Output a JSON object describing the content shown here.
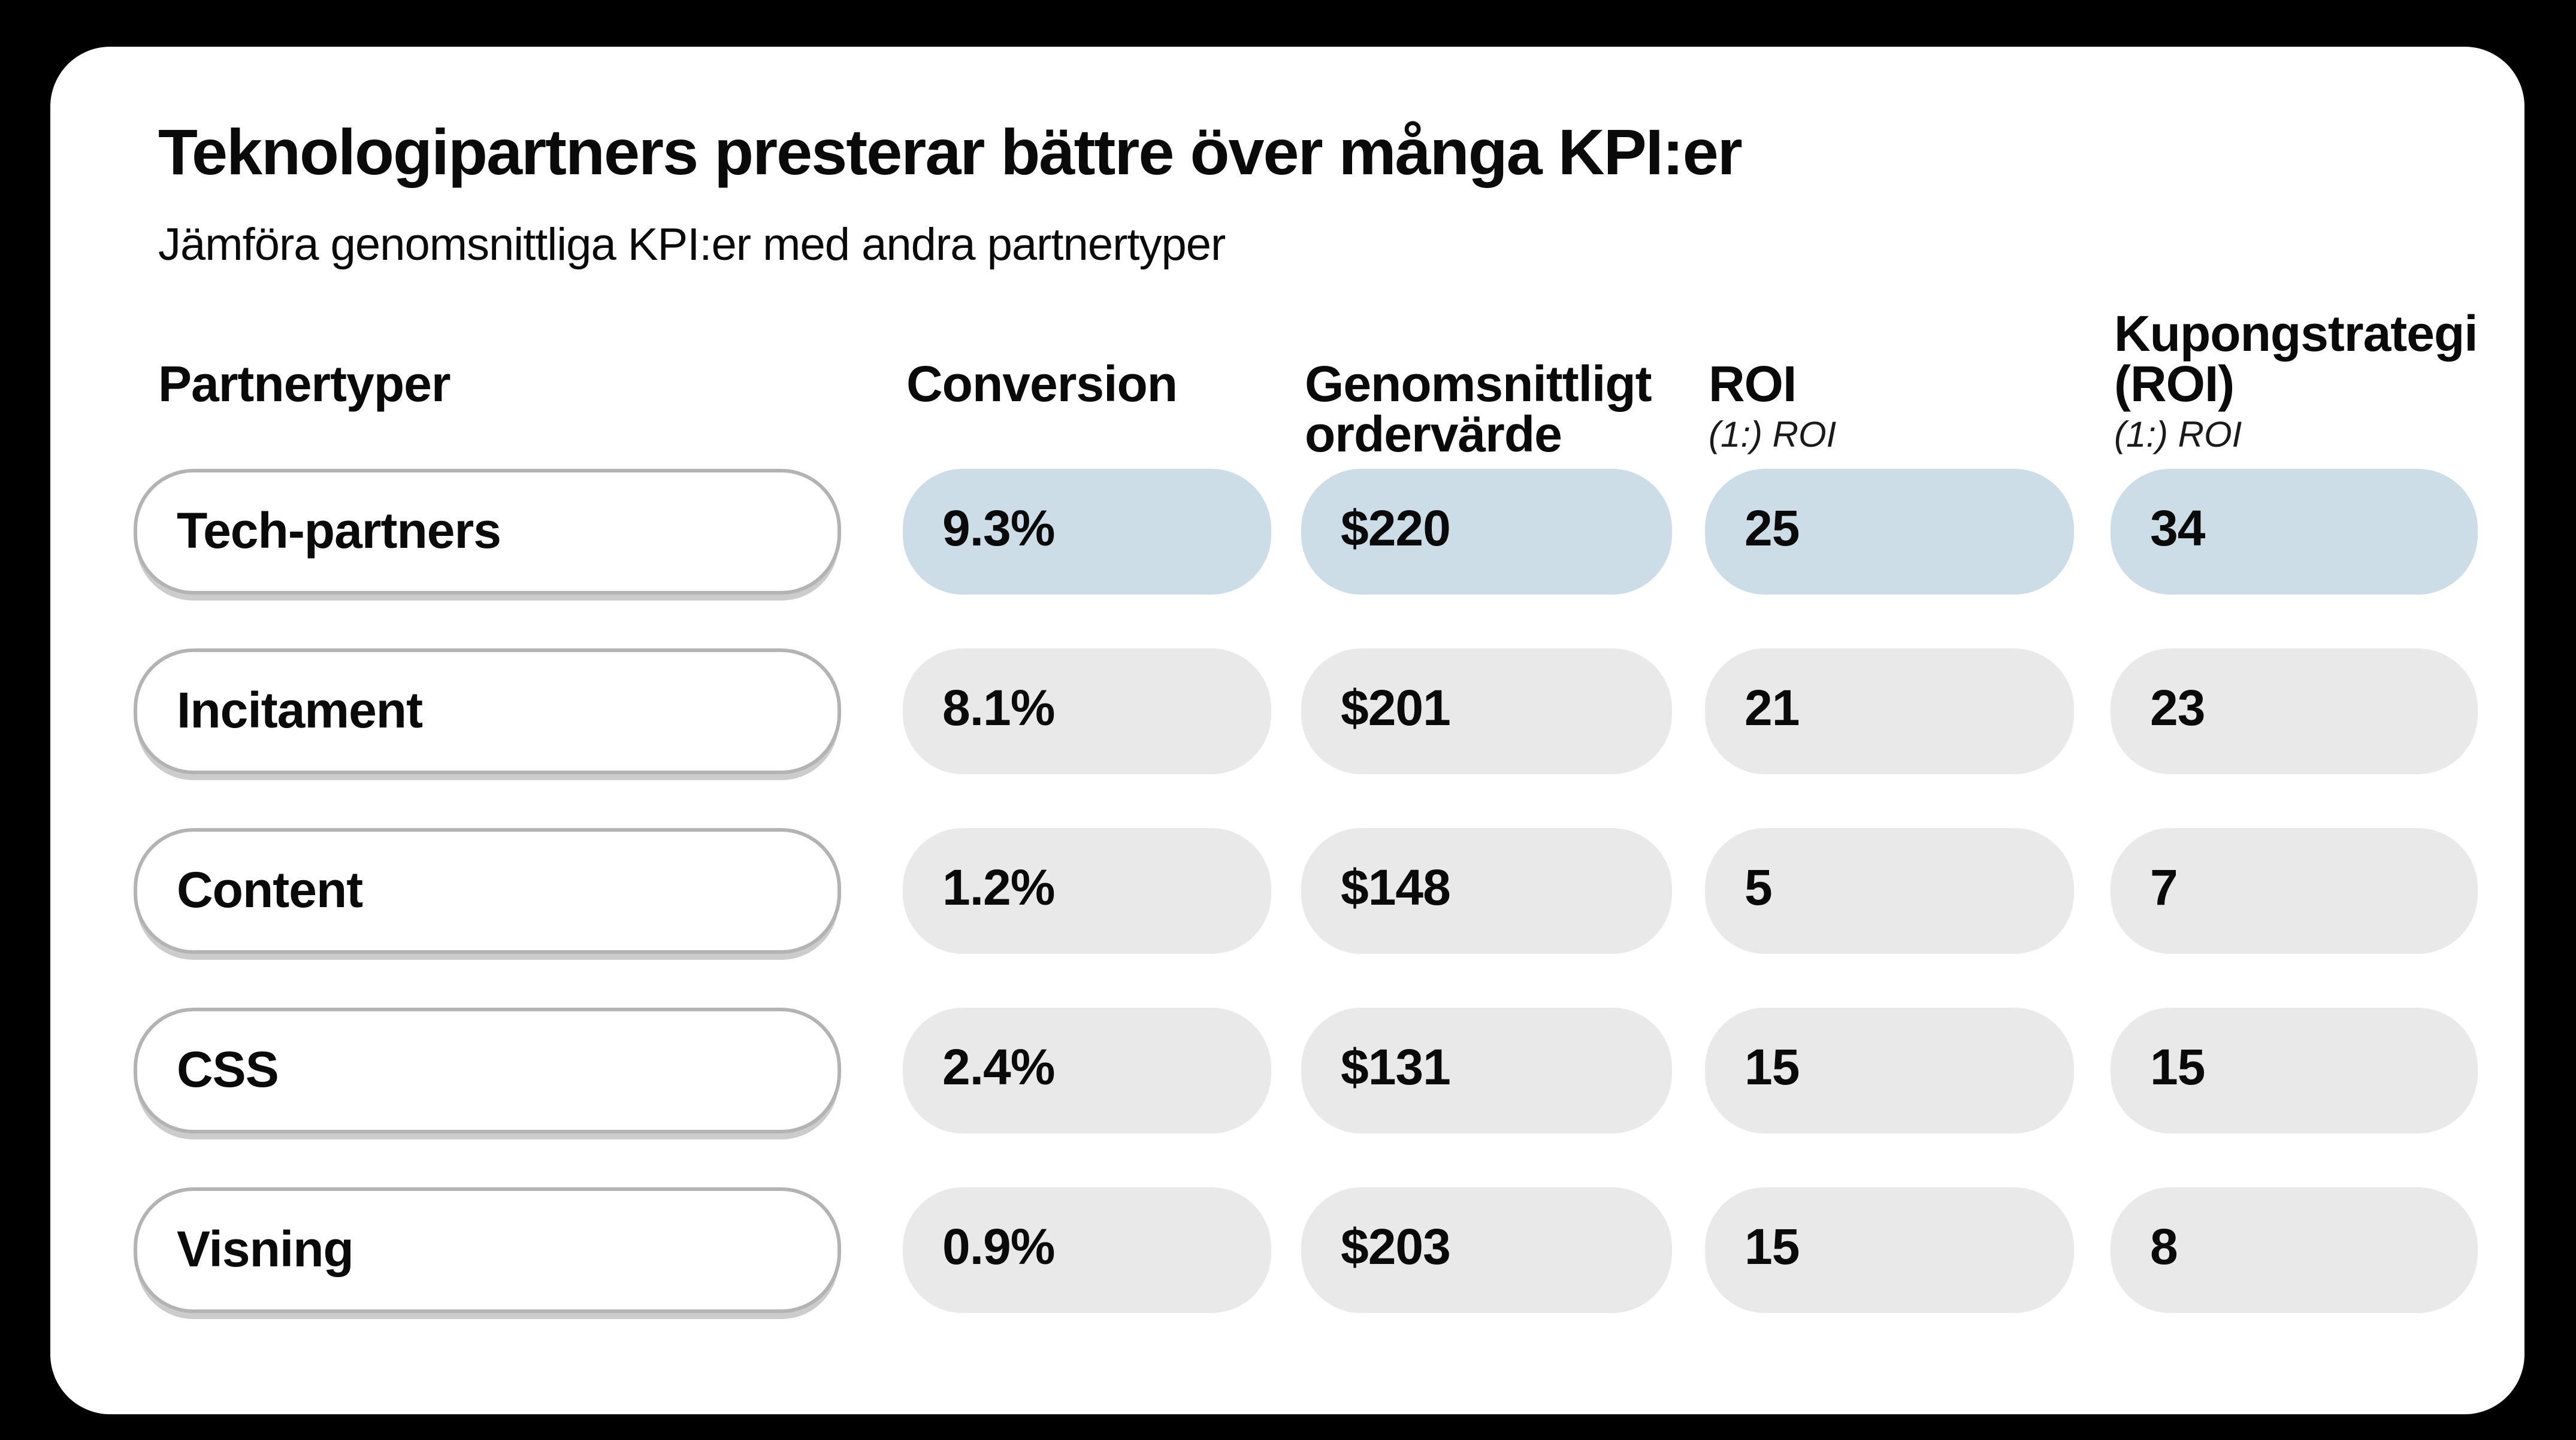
{
  "card": {
    "title": "Teknologipartners presterar bättre över många KPI:er",
    "subtitle": "Jämföra genomsnittliga KPI:er med andra partnertyper"
  },
  "table": {
    "headers": [
      {
        "label": "Partnertyper",
        "sublabel": ""
      },
      {
        "label": "Conversion",
        "sublabel": ""
      },
      {
        "label": "Genomsnittligt ordervärde",
        "sublabel": ""
      },
      {
        "label": "ROI",
        "sublabel": "(1:) ROI"
      },
      {
        "label": "Kupongstrategi (ROI)",
        "sublabel": "(1:) ROI"
      }
    ],
    "rows": [
      {
        "partner": "Tech-partners",
        "values": [
          "9.3%",
          "$220",
          "25",
          "34"
        ],
        "highlight": true
      },
      {
        "partner": "Incitament",
        "values": [
          "8.1%",
          "$201",
          "21",
          "23"
        ],
        "highlight": false
      },
      {
        "partner": "Content",
        "values": [
          "1.2%",
          "$148",
          "5",
          "7"
        ],
        "highlight": false
      },
      {
        "partner": "CSS",
        "values": [
          "2.4%",
          "$131",
          "15",
          "15"
        ],
        "highlight": false
      },
      {
        "partner": "Visning",
        "values": [
          "0.9%",
          "$203",
          "15",
          "8"
        ],
        "highlight": false
      }
    ]
  },
  "colors": {
    "background": "#000000",
    "card": "#ffffff",
    "highlight_pill": "#ccdde8",
    "neutral_pill": "#e9e9ea",
    "pill_border": "#b3b3b3",
    "pill_shadow": "#cccccc",
    "text": "#0a0a0a"
  },
  "chart_data": {
    "type": "table",
    "title": "Teknologipartners presterar bättre över många KPI:er",
    "subtitle": "Jämföra genomsnittliga KPI:er med andra partnertyper",
    "columns": [
      "Partnertyper",
      "Conversion",
      "Genomsnittligt ordervärde",
      "ROI (1:) ROI",
      "Kupongstrategi (ROI) (1:) ROI"
    ],
    "rows": [
      {
        "partnertyp": "Tech-partners",
        "conversion_pct": 9.3,
        "genomsnittligt_ordervarde_usd": 220,
        "roi": 25,
        "kupongstrategi_roi": 34,
        "highlighted": true
      },
      {
        "partnertyp": "Incitament",
        "conversion_pct": 8.1,
        "genomsnittligt_ordervarde_usd": 201,
        "roi": 21,
        "kupongstrategi_roi": 23,
        "highlighted": false
      },
      {
        "partnertyp": "Content",
        "conversion_pct": 1.2,
        "genomsnittligt_ordervarde_usd": 148,
        "roi": 5,
        "kupongstrategi_roi": 7,
        "highlighted": false
      },
      {
        "partnertyp": "CSS",
        "conversion_pct": 2.4,
        "genomsnittligt_ordervarde_usd": 131,
        "roi": 15,
        "kupongstrategi_roi": 15,
        "highlighted": false
      },
      {
        "partnertyp": "Visning",
        "conversion_pct": 0.9,
        "genomsnittligt_ordervarde_usd": 203,
        "roi": 15,
        "kupongstrategi_roi": 8,
        "highlighted": false
      }
    ],
    "legend_position": "none",
    "grid": false
  }
}
